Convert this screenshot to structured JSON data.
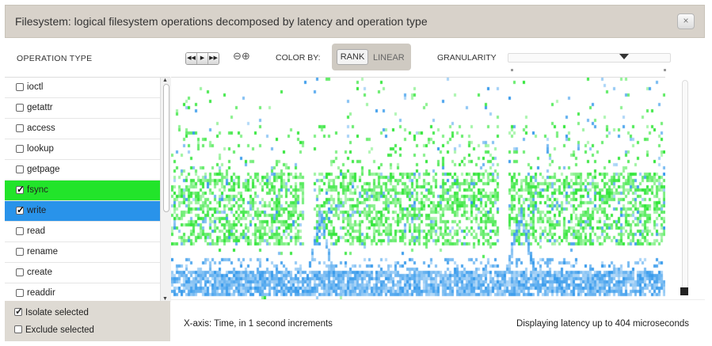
{
  "window": {
    "title": "Filesystem: logical filesystem operations decomposed by latency and operation type",
    "close_icon": "×"
  },
  "operations": {
    "header": "OPERATION TYPE",
    "items": [
      {
        "label": "ioctl",
        "checked": false,
        "color": ""
      },
      {
        "label": "getattr",
        "checked": false,
        "color": ""
      },
      {
        "label": "access",
        "checked": false,
        "color": ""
      },
      {
        "label": "lookup",
        "checked": false,
        "color": ""
      },
      {
        "label": "getpage",
        "checked": false,
        "color": ""
      },
      {
        "label": "fsync",
        "checked": true,
        "color": "#22e42a"
      },
      {
        "label": "write",
        "checked": true,
        "color": "#2993ea"
      },
      {
        "label": "read",
        "checked": false,
        "color": ""
      },
      {
        "label": "rename",
        "checked": false,
        "color": ""
      },
      {
        "label": "create",
        "checked": false,
        "color": ""
      },
      {
        "label": "readdir",
        "checked": false,
        "color": ""
      }
    ],
    "isolate_label": "Isolate selected",
    "isolate_checked": true,
    "exclude_label": "Exclude selected",
    "exclude_checked": false
  },
  "toolbar": {
    "nav_icons": [
      "rewind-icon",
      "play-icon",
      "fast-forward-icon"
    ],
    "zoom_icons": [
      "zoom-out-icon",
      "zoom-in-icon"
    ],
    "color_by_label": "COLOR BY:",
    "color_by_options": [
      "RANK",
      "LINEAR"
    ],
    "color_by_selected": "RANK",
    "granularity_label": "GRANULARITY",
    "granularity_level": 0.73
  },
  "footer": {
    "xaxis_text": "X-axis: Time, in 1 second increments",
    "display_text": "Displaying latency up to 404 microseconds"
  },
  "colors": {
    "fsync": "#22e42a",
    "write": "#2993ea"
  }
}
